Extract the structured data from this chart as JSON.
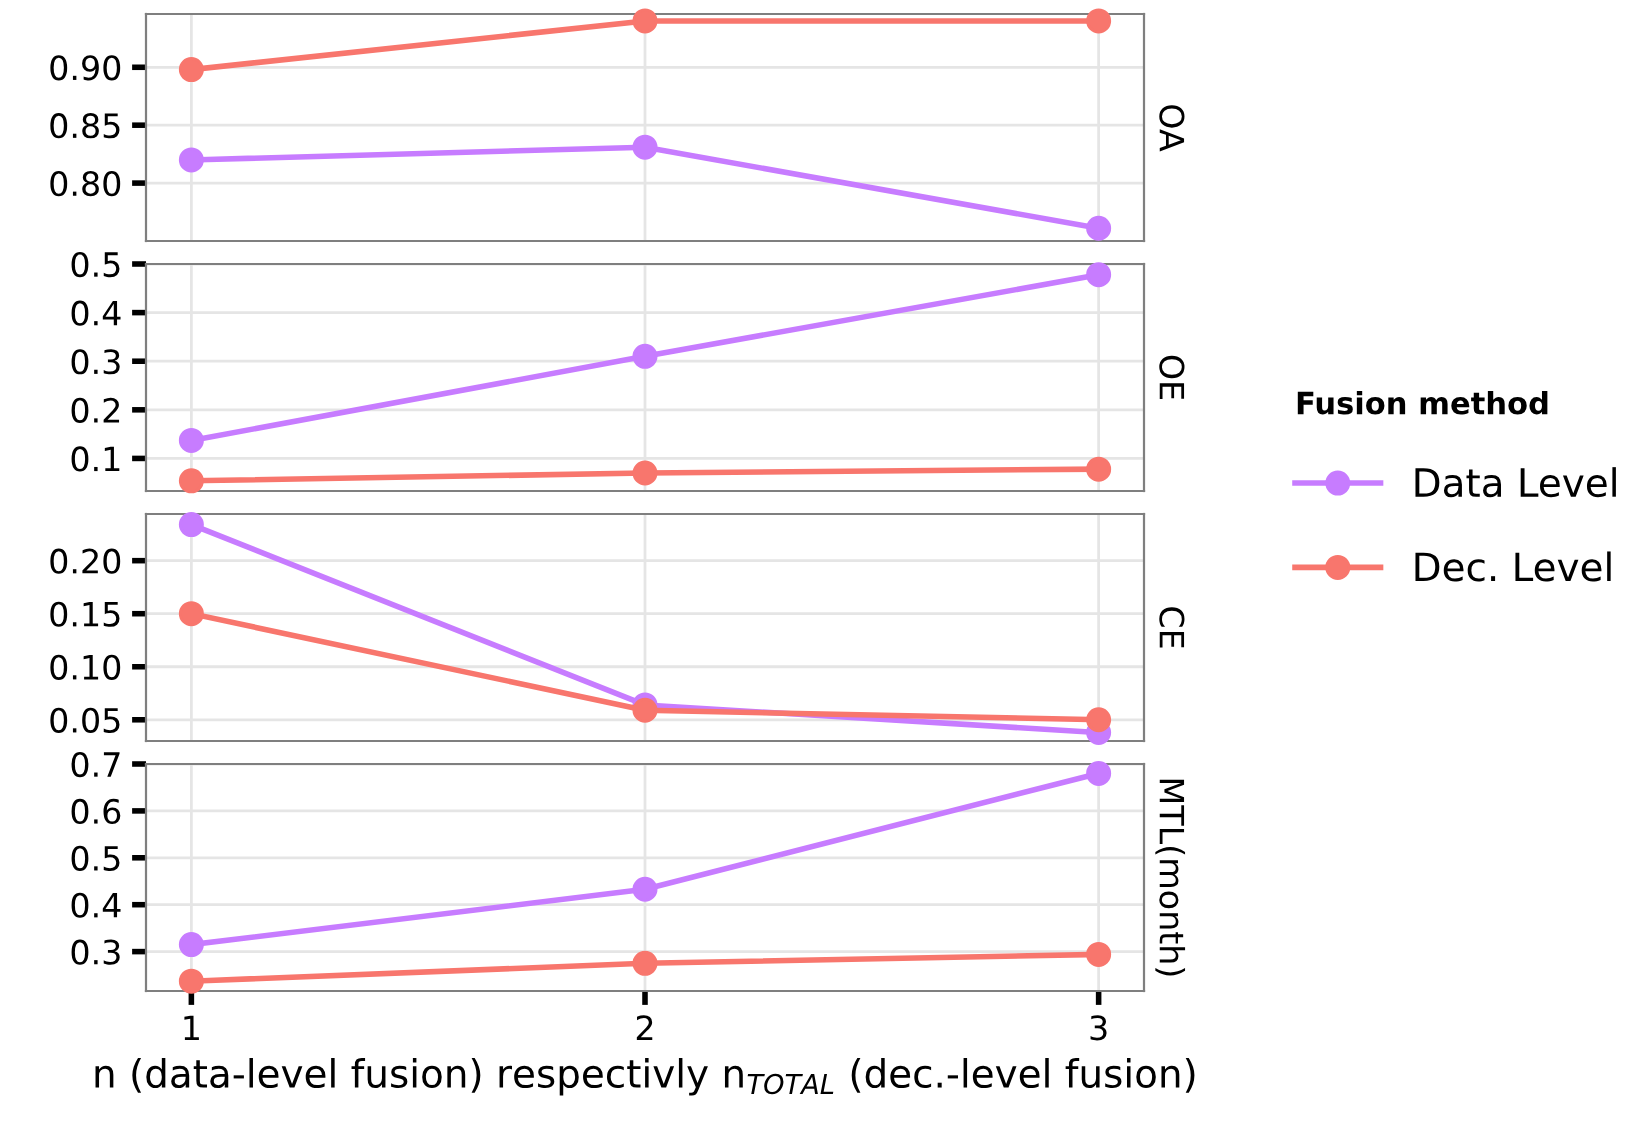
{
  "chart_data": [
    {
      "type": "line",
      "title": "OA",
      "x": [
        1,
        2,
        3
      ],
      "xlim": [
        0.9,
        3.1
      ],
      "xticks": [
        1,
        2,
        3
      ],
      "ylim": [
        0.75,
        0.946
      ],
      "yticks": [
        {
          "value": 0.8,
          "label": "0.80"
        },
        0.85,
        {
          "value": 0.9,
          "label": "0.90"
        }
      ],
      "tick_labels": "y",
      "grid": true,
      "marker": "circle",
      "line_style": "solid",
      "legend": "right",
      "legend_title": "Fusion method",
      "series": [
        {
          "name": "Data Level",
          "color": "#c77cff",
          "values": [
            0.82,
            0.831,
            0.761
          ]
        },
        {
          "name": "Dec. Level",
          "color": "#f8766d",
          "values": [
            0.898,
            0.94,
            0.94
          ]
        }
      ]
    },
    {
      "type": "line",
      "title": "OE",
      "x": [
        1,
        2,
        3
      ],
      "xlim": [
        0.9,
        3.1
      ],
      "xticks": [
        1,
        2,
        3
      ],
      "ylim": [
        0.033,
        0.5
      ],
      "yticks": [
        0.1,
        0.2,
        0.3,
        0.4,
        0.5
      ],
      "tick_labels": "y",
      "grid": true,
      "marker": "circle",
      "line_style": "solid",
      "series": [
        {
          "color": "#c77cff",
          "values": [
            0.137,
            0.31,
            0.478
          ]
        },
        {
          "color": "#f8766d",
          "values": [
            0.054,
            0.07,
            0.078
          ]
        }
      ]
    },
    {
      "type": "line",
      "title": "CE",
      "x": [
        1,
        2,
        3
      ],
      "xlim": [
        0.9,
        3.1
      ],
      "xticks": [
        1,
        2,
        3
      ],
      "ylim": [
        0.03,
        0.244
      ],
      "yticks": [
        0.05,
        {
          "value": 0.1,
          "label": "0.10"
        },
        0.15,
        {
          "value": 0.2,
          "label": "0.20"
        }
      ],
      "tick_labels": "y",
      "grid": true,
      "marker": "circle",
      "line_style": "solid",
      "series": [
        {
          "color": "#c77cff",
          "values": [
            0.234,
            0.064,
            0.038
          ]
        },
        {
          "color": "#f8766d",
          "values": [
            0.15,
            0.059,
            0.05
          ]
        }
      ]
    },
    {
      "type": "line",
      "title": "MTL(month)",
      "xlabel": "n (data-level fusion) respectivly n$_{TOTAL}$ (dec.-level fusion)",
      "x": [
        1,
        2,
        3
      ],
      "xlim": [
        0.9,
        3.1
      ],
      "xticks": [
        1,
        2,
        3
      ],
      "ylim": [
        0.216,
        0.7
      ],
      "yticks": [
        0.3,
        0.4,
        0.5,
        0.6,
        0.7
      ],
      "grid": true,
      "marker": "circle",
      "line_style": "solid",
      "series": [
        {
          "color": "#c77cff",
          "values": [
            0.315,
            0.433,
            0.68
          ]
        },
        {
          "color": "#f8766d",
          "values": [
            0.237,
            0.275,
            0.294
          ]
        }
      ]
    }
  ]
}
